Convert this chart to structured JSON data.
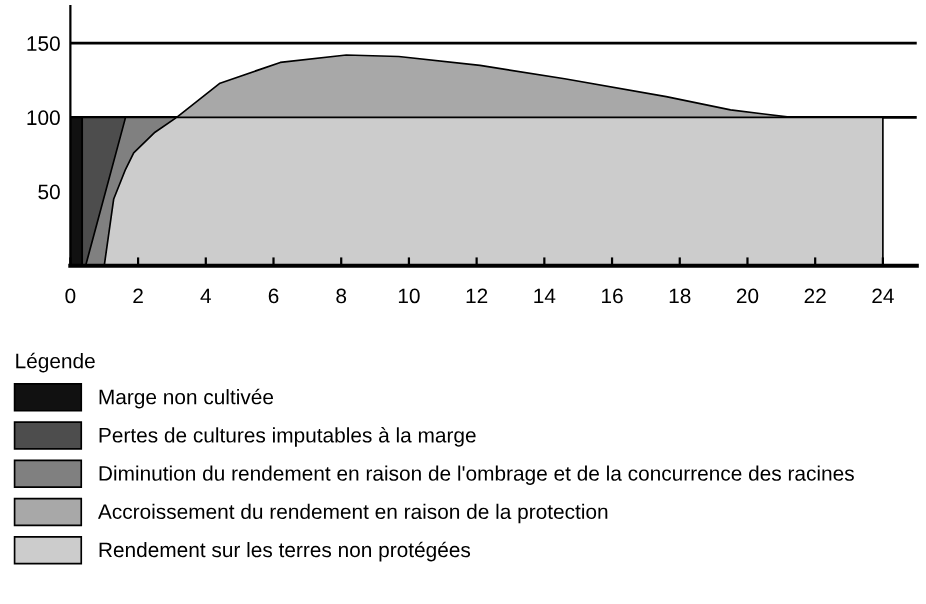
{
  "chart_data": {
    "type": "area",
    "legend_title": "Légende",
    "legend": "bottom",
    "grid": false,
    "xlim": [
      0,
      25
    ],
    "ylim": [
      0,
      175
    ],
    "xticks": [
      0,
      2,
      4,
      6,
      8,
      10,
      12,
      14,
      16,
      18,
      20,
      22,
      24
    ],
    "yticks": [
      50,
      100,
      150
    ],
    "ref_lines": [
      {
        "axis": "y",
        "value": 150,
        "color": "#000000"
      },
      {
        "axis": "y",
        "value": 100,
        "color": "#000000"
      }
    ],
    "series": [
      {
        "name": "Marge non cultivée",
        "color": "#111111",
        "x": [
          0,
          0.35
        ],
        "values": [
          100,
          100
        ]
      },
      {
        "name": "Pertes de cultures imputables à la marge",
        "color": "#4d4d4d",
        "x": [
          0.35,
          1.63
        ],
        "values": [
          100,
          100
        ]
      },
      {
        "name": "Diminution du rendement en raison de l'ombrage et de la concurrence des racines",
        "color": "#808080",
        "x": [
          0.45,
          1.63,
          3.14
        ],
        "values": [
          0,
          100,
          100
        ]
      },
      {
        "name": "Accroissement du rendement en raison de la protection",
        "color": "#a8a8a8",
        "x": [
          3.14,
          4.42,
          6.2,
          8.15,
          9.7,
          12.1,
          14.6,
          17.6,
          19.5,
          21.3
        ],
        "values": [
          100,
          123,
          137,
          142,
          141,
          135,
          126,
          114,
          105,
          100
        ]
      },
      {
        "name": "Rendement sur les terres non protégées",
        "color": "#cccccc",
        "x": [
          1.0,
          1.28,
          1.63,
          1.87,
          2.5,
          3.14,
          24
        ],
        "values": [
          0,
          45,
          65,
          76,
          90,
          100,
          100
        ]
      }
    ]
  }
}
